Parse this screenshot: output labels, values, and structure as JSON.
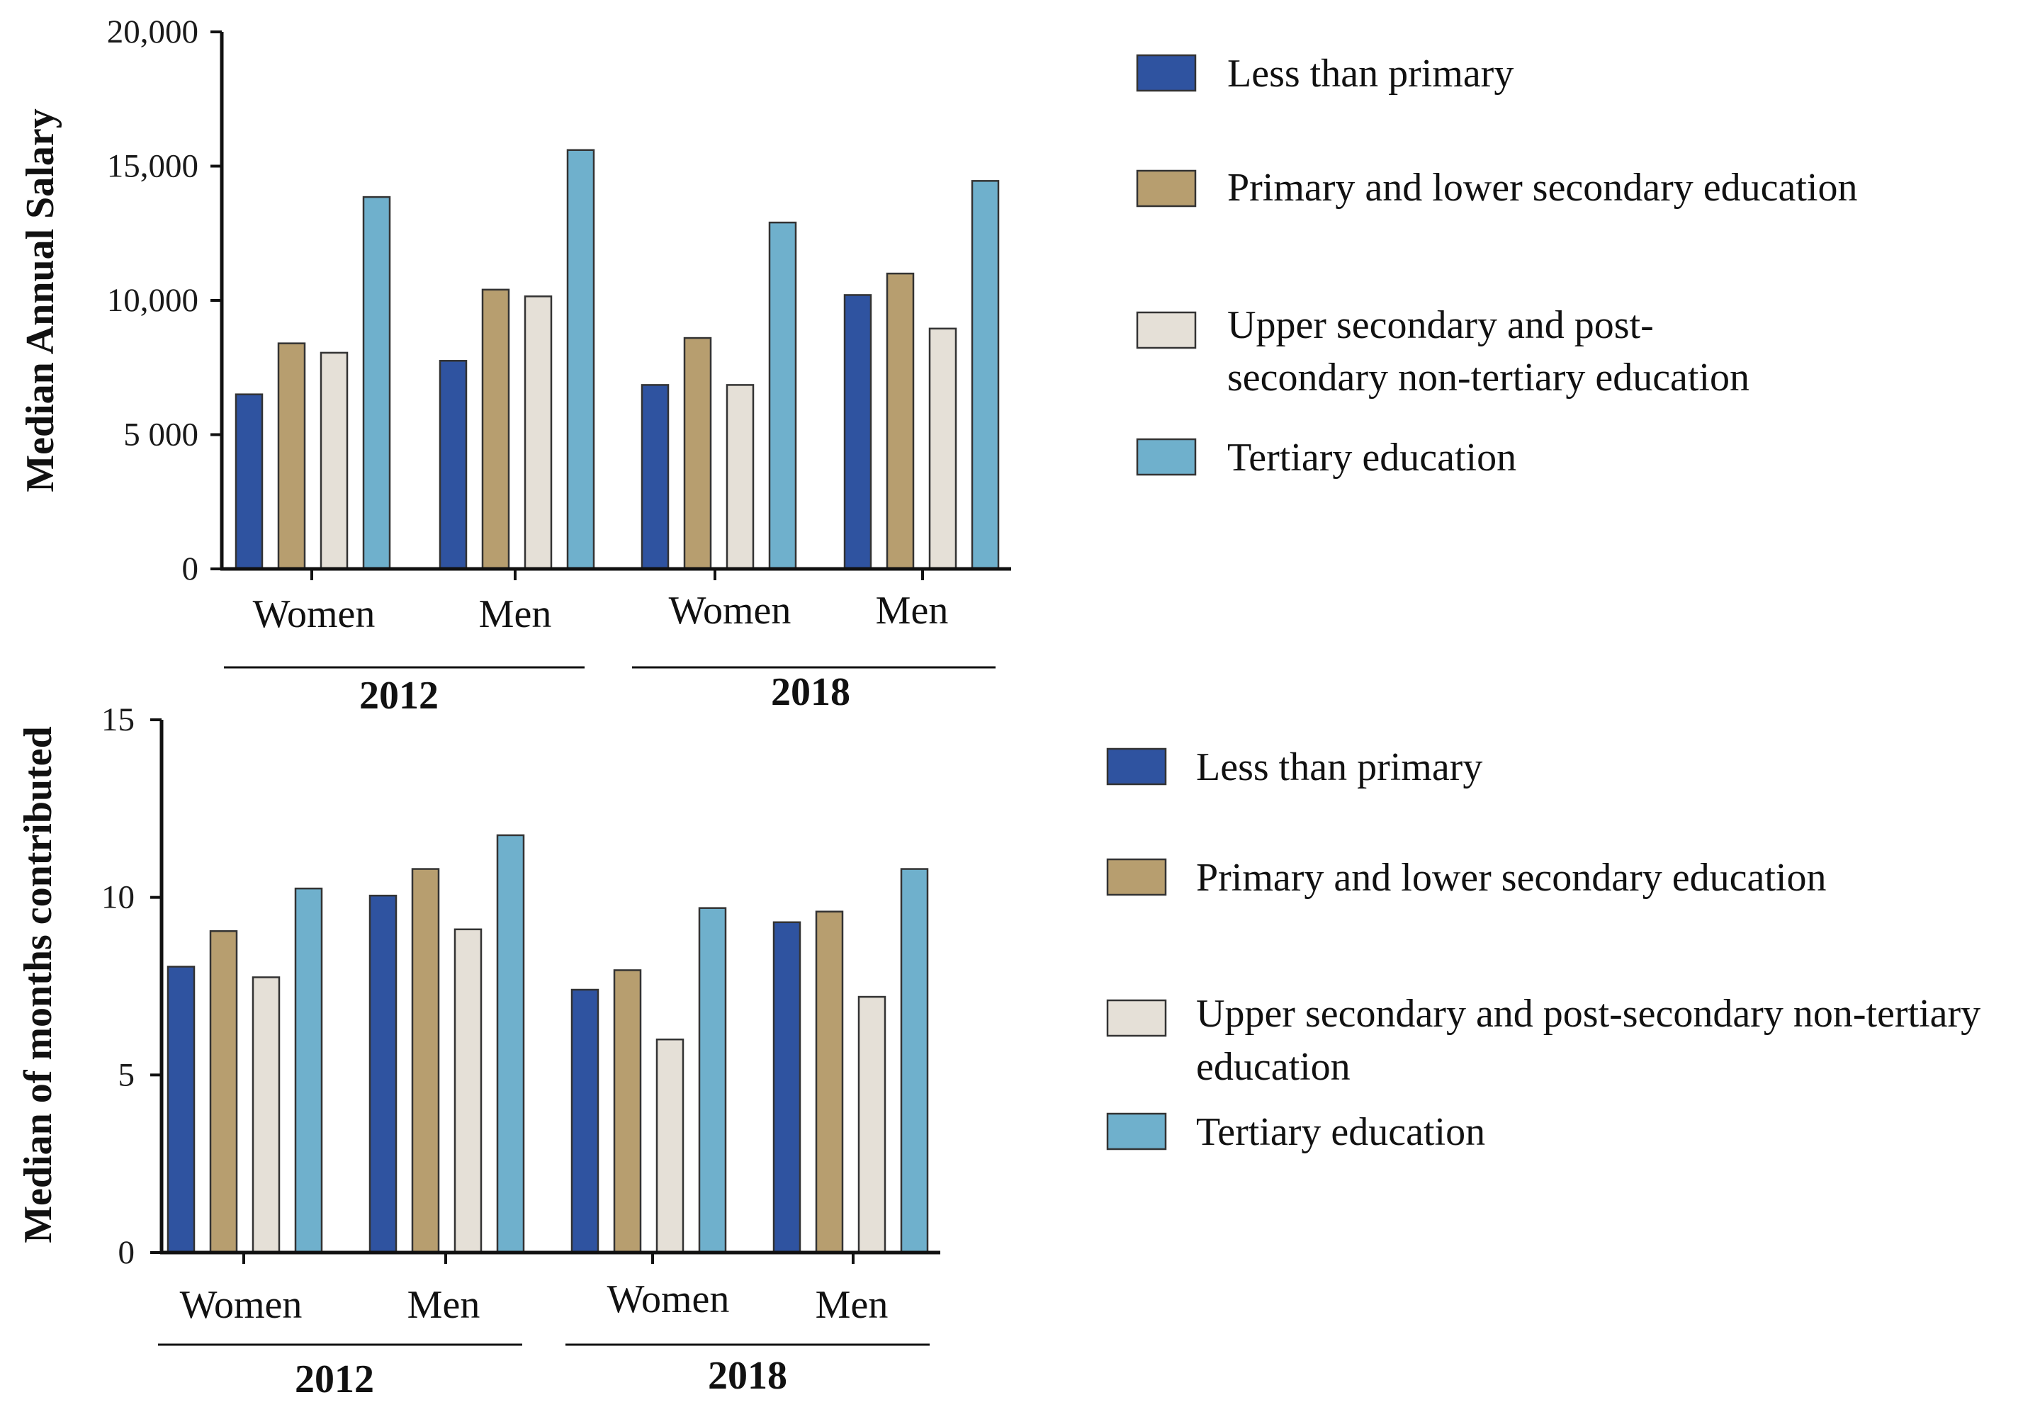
{
  "chart_data": [
    {
      "type": "bar",
      "title": "",
      "ylabel": "Median Annual Salary",
      "xlabel": "",
      "ylim": [
        0,
        20000
      ],
      "yticks": [
        0,
        5000,
        10000,
        15000,
        20000
      ],
      "ytick_labels": [
        "0",
        "5 000",
        "10,000",
        "15,000",
        "20,000"
      ],
      "grid": false,
      "legend_position": "right",
      "categories": [
        {
          "group": "Women",
          "year": "2012"
        },
        {
          "group": "Men",
          "year": "2012"
        },
        {
          "group": "Women",
          "year": "2018"
        },
        {
          "group": "Men",
          "year": "2018"
        }
      ],
      "years": [
        "2012",
        "2018"
      ],
      "series": [
        {
          "name": "Less than primary",
          "legend": [
            "Less than primary"
          ],
          "color": "#2f53a0",
          "values": [
            6500,
            7750,
            6850,
            10200
          ]
        },
        {
          "name": "Primary and lower secondary education",
          "legend": [
            "Primary and lower secondary education"
          ],
          "color": "#b79e6f",
          "values": [
            8400,
            10400,
            8600,
            11000
          ]
        },
        {
          "name": "Upper secondary and post-secondary non-tertiary education",
          "legend": [
            "Upper secondary and post-",
            "secondary non-tertiary education"
          ],
          "color": "#e5e0d7",
          "values": [
            8050,
            10150,
            6850,
            8950
          ]
        },
        {
          "name": "Tertiary education",
          "legend": [
            "Tertiary education"
          ],
          "color": "#6fb0cc",
          "values": [
            13850,
            15600,
            12900,
            14450
          ]
        }
      ]
    },
    {
      "type": "bar",
      "title": "",
      "ylabel": "Median of months contributed",
      "xlabel": "",
      "ylim": [
        0,
        15
      ],
      "yticks": [
        0,
        5,
        10,
        15
      ],
      "ytick_labels": [
        "0",
        "5",
        "10",
        "15"
      ],
      "grid": false,
      "legend_position": "right",
      "categories": [
        {
          "group": "Women",
          "year": "2012"
        },
        {
          "group": "Men",
          "year": "2012"
        },
        {
          "group": "Women",
          "year": "2018"
        },
        {
          "group": "Men",
          "year": "2018"
        }
      ],
      "years": [
        "2012",
        "2018"
      ],
      "series": [
        {
          "name": "Less than primary",
          "legend": [
            "Less than primary"
          ],
          "color": "#2f53a0",
          "values": [
            8.05,
            10.05,
            7.4,
            9.3
          ]
        },
        {
          "name": "Primary and lower secondary education",
          "legend": [
            "Primary and lower secondary education"
          ],
          "color": "#b79e6f",
          "values": [
            9.05,
            10.8,
            7.95,
            9.6
          ]
        },
        {
          "name": "Upper secondary and post-secondary non-tertiary education",
          "legend": [
            "Upper secondary and post-secondary non-tertiary",
            "education"
          ],
          "color": "#e5e0d7",
          "values": [
            7.75,
            9.1,
            6.0,
            7.2
          ]
        },
        {
          "name": "Tertiary education",
          "legend": [
            "Tertiary education"
          ],
          "color": "#6fb0cc",
          "values": [
            10.25,
            11.75,
            9.7,
            10.8
          ]
        }
      ]
    }
  ]
}
